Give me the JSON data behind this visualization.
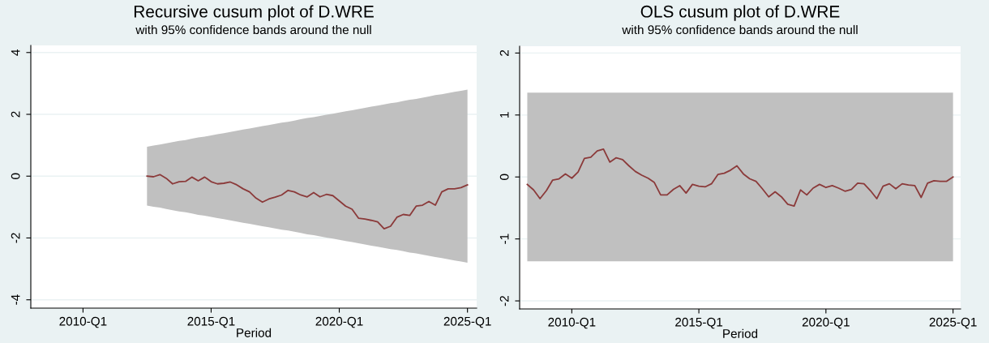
{
  "chart_data": [
    {
      "type": "line",
      "title": "Recursive cusum plot of D.WRE",
      "subtitle": "with 95% confidence bands around the null",
      "xlabel": "Period",
      "xlim": [
        "2007-12-19",
        "2025-05-12"
      ],
      "xticks": [
        {
          "value": "2010-01",
          "label": "2010-Q1"
        },
        {
          "value": "2015-01",
          "label": "2015-Q1"
        },
        {
          "value": "2020-01",
          "label": "2020-Q1"
        },
        {
          "value": "2025-01",
          "label": "2025-Q1"
        }
      ],
      "ylim": [
        -4.27,
        4.23
      ],
      "yticks": [
        -4,
        -2,
        0,
        2,
        4
      ],
      "grid": "y",
      "legend": false,
      "marker": "none",
      "line_style": "solid",
      "x": [
        "2012-07",
        "2012-10",
        "2013-01",
        "2013-04",
        "2013-07",
        "2013-10",
        "2014-01",
        "2014-04",
        "2014-07",
        "2014-10",
        "2015-01",
        "2015-04",
        "2015-07",
        "2015-10",
        "2016-01",
        "2016-04",
        "2016-07",
        "2016-10",
        "2017-01",
        "2017-04",
        "2017-07",
        "2017-10",
        "2018-01",
        "2018-04",
        "2018-07",
        "2018-10",
        "2019-01",
        "2019-04",
        "2019-07",
        "2019-10",
        "2020-01",
        "2020-04",
        "2020-07",
        "2020-10",
        "2021-01",
        "2021-04",
        "2021-07",
        "2021-10",
        "2022-01",
        "2022-04",
        "2022-07",
        "2022-10",
        "2023-01",
        "2023-04",
        "2023-07",
        "2023-10",
        "2024-01",
        "2024-04",
        "2024-07",
        "2024-10",
        "2025-01"
      ],
      "series": [
        {
          "color": "#8b3a3a",
          "values": [
            0,
            -0.02,
            0.05,
            -0.07,
            -0.25,
            -0.18,
            -0.17,
            -0.03,
            -0.15,
            -0.03,
            -0.18,
            -0.25,
            -0.23,
            -0.19,
            -0.28,
            -0.41,
            -0.51,
            -0.71,
            -0.84,
            -0.74,
            -0.68,
            -0.61,
            -0.46,
            -0.51,
            -0.61,
            -0.67,
            -0.53,
            -0.67,
            -0.59,
            -0.63,
            -0.8,
            -0.97,
            -1.07,
            -1.36,
            -1.39,
            -1.43,
            -1.48,
            -1.7,
            -1.62,
            -1.33,
            -1.24,
            -1.27,
            -0.97,
            -0.94,
            -0.82,
            -0.94,
            -0.51,
            -0.41,
            -0.41,
            -0.37,
            -0.28
          ],
          "lower": [
            -0.95,
            -0.99,
            -1.02,
            -1.06,
            -1.1,
            -1.14,
            -1.17,
            -1.21,
            -1.25,
            -1.28,
            -1.32,
            -1.36,
            -1.39,
            -1.43,
            -1.47,
            -1.51,
            -1.54,
            -1.58,
            -1.62,
            -1.65,
            -1.69,
            -1.73,
            -1.76,
            -1.8,
            -1.84,
            -1.88,
            -1.91,
            -1.95,
            -1.99,
            -2.02,
            -2.06,
            -2.1,
            -2.13,
            -2.17,
            -2.21,
            -2.25,
            -2.28,
            -2.32,
            -2.36,
            -2.39,
            -2.43,
            -2.47,
            -2.5,
            -2.54,
            -2.58,
            -2.62,
            -2.65,
            -2.69,
            -2.73,
            -2.76,
            -2.8
          ],
          "upper": [
            0.95,
            0.99,
            1.02,
            1.06,
            1.1,
            1.14,
            1.17,
            1.21,
            1.25,
            1.28,
            1.32,
            1.36,
            1.39,
            1.43,
            1.47,
            1.51,
            1.54,
            1.58,
            1.62,
            1.65,
            1.69,
            1.73,
            1.76,
            1.8,
            1.84,
            1.88,
            1.91,
            1.95,
            1.99,
            2.02,
            2.06,
            2.1,
            2.13,
            2.17,
            2.21,
            2.25,
            2.28,
            2.32,
            2.36,
            2.39,
            2.43,
            2.47,
            2.5,
            2.54,
            2.58,
            2.62,
            2.65,
            2.69,
            2.73,
            2.76,
            2.8
          ]
        }
      ]
    },
    {
      "type": "line",
      "title": "OLS cusum plot of D.WRE",
      "subtitle": "with 95% confidence bands around the null",
      "xlabel": "Period",
      "xlim": [
        "2007-12-13",
        "2025-04-20"
      ],
      "xticks": [
        {
          "value": "2010-01",
          "label": "2010-Q1"
        },
        {
          "value": "2015-01",
          "label": "2015-Q1"
        },
        {
          "value": "2020-01",
          "label": "2020-Q1"
        },
        {
          "value": "2025-01",
          "label": "2025-Q1"
        }
      ],
      "ylim": [
        -2.13,
        2.11
      ],
      "yticks": [
        -2,
        -1,
        0,
        1,
        2
      ],
      "grid": "y",
      "legend": false,
      "marker": "none",
      "line_style": "solid",
      "x": [
        "2008-04",
        "2008-07",
        "2008-10",
        "2009-01",
        "2009-04",
        "2009-07",
        "2009-10",
        "2010-01",
        "2010-04",
        "2010-07",
        "2010-10",
        "2011-01",
        "2011-04",
        "2011-07",
        "2011-10",
        "2012-01",
        "2012-04",
        "2012-07",
        "2012-10",
        "2013-01",
        "2013-04",
        "2013-07",
        "2013-10",
        "2014-01",
        "2014-04",
        "2014-07",
        "2014-10",
        "2015-01",
        "2015-04",
        "2015-07",
        "2015-10",
        "2016-01",
        "2016-04",
        "2016-07",
        "2016-10",
        "2017-01",
        "2017-04",
        "2017-07",
        "2017-10",
        "2018-01",
        "2018-04",
        "2018-07",
        "2018-10",
        "2019-01",
        "2019-04",
        "2019-07",
        "2019-10",
        "2020-01",
        "2020-04",
        "2020-07",
        "2020-10",
        "2021-01",
        "2021-04",
        "2021-07",
        "2021-10",
        "2022-01",
        "2022-04",
        "2022-07",
        "2022-10",
        "2023-01",
        "2023-04",
        "2023-07",
        "2023-10",
        "2024-01",
        "2024-04",
        "2024-07",
        "2024-10",
        "2025-01"
      ],
      "series": [
        {
          "color": "#8b3a3a",
          "values": [
            -0.12,
            -0.21,
            -0.35,
            -0.22,
            -0.05,
            -0.03,
            0.05,
            -0.02,
            0.08,
            0.3,
            0.32,
            0.42,
            0.45,
            0.24,
            0.31,
            0.28,
            0.18,
            0.09,
            0.03,
            -0.02,
            -0.09,
            -0.29,
            -0.29,
            -0.2,
            -0.14,
            -0.26,
            -0.12,
            -0.15,
            -0.16,
            -0.11,
            0.04,
            0.06,
            0.11,
            0.18,
            0.05,
            -0.03,
            -0.07,
            -0.19,
            -0.32,
            -0.24,
            -0.32,
            -0.44,
            -0.47,
            -0.21,
            -0.29,
            -0.18,
            -0.12,
            -0.17,
            -0.14,
            -0.18,
            -0.23,
            -0.2,
            -0.1,
            -0.11,
            -0.22,
            -0.35,
            -0.15,
            -0.11,
            -0.19,
            -0.11,
            -0.13,
            -0.14,
            -0.33,
            -0.1,
            -0.06,
            -0.07,
            -0.07,
            0
          ],
          "lower": [
            -1.36,
            -1.36,
            -1.36,
            -1.36,
            -1.36,
            -1.36,
            -1.36,
            -1.36,
            -1.36,
            -1.36,
            -1.36,
            -1.36,
            -1.36,
            -1.36,
            -1.36,
            -1.36,
            -1.36,
            -1.36,
            -1.36,
            -1.36,
            -1.36,
            -1.36,
            -1.36,
            -1.36,
            -1.36,
            -1.36,
            -1.36,
            -1.36,
            -1.36,
            -1.36,
            -1.36,
            -1.36,
            -1.36,
            -1.36,
            -1.36,
            -1.36,
            -1.36,
            -1.36,
            -1.36,
            -1.36,
            -1.36,
            -1.36,
            -1.36,
            -1.36,
            -1.36,
            -1.36,
            -1.36,
            -1.36,
            -1.36,
            -1.36,
            -1.36,
            -1.36,
            -1.36,
            -1.36,
            -1.36,
            -1.36,
            -1.36,
            -1.36,
            -1.36,
            -1.36,
            -1.36,
            -1.36,
            -1.36,
            -1.36,
            -1.36,
            -1.36,
            -1.36,
            -1.36
          ],
          "upper": [
            1.36,
            1.36,
            1.36,
            1.36,
            1.36,
            1.36,
            1.36,
            1.36,
            1.36,
            1.36,
            1.36,
            1.36,
            1.36,
            1.36,
            1.36,
            1.36,
            1.36,
            1.36,
            1.36,
            1.36,
            1.36,
            1.36,
            1.36,
            1.36,
            1.36,
            1.36,
            1.36,
            1.36,
            1.36,
            1.36,
            1.36,
            1.36,
            1.36,
            1.36,
            1.36,
            1.36,
            1.36,
            1.36,
            1.36,
            1.36,
            1.36,
            1.36,
            1.36,
            1.36,
            1.36,
            1.36,
            1.36,
            1.36,
            1.36,
            1.36,
            1.36,
            1.36,
            1.36,
            1.36,
            1.36,
            1.36,
            1.36,
            1.36,
            1.36,
            1.36,
            1.36,
            1.36,
            1.36,
            1.36,
            1.36,
            1.36,
            1.36,
            1.36
          ]
        }
      ]
    }
  ]
}
